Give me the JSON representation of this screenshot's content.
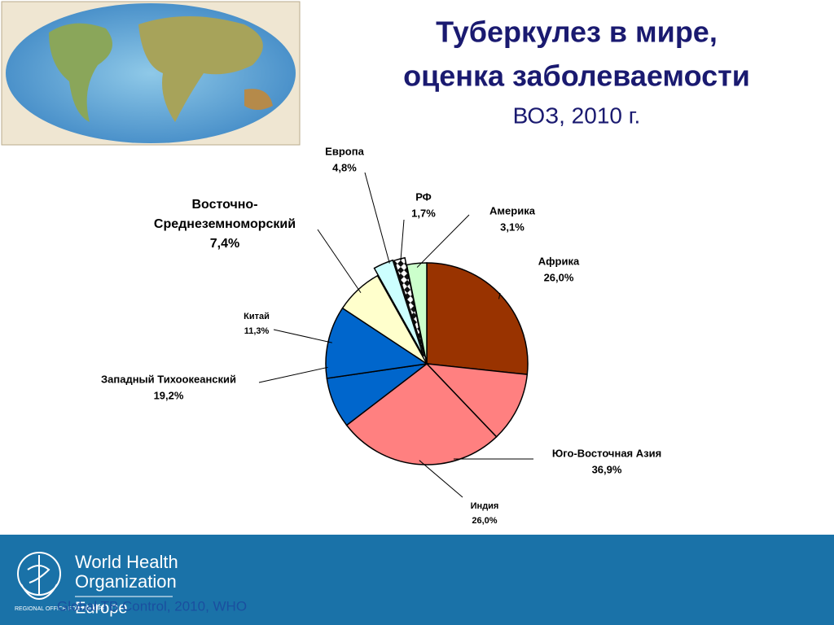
{
  "header": {
    "title": [
      "Туберкулез в мире,",
      "оценка заболеваемости"
    ],
    "subtitle": "ВОЗ, 2010 г."
  },
  "chart_data": {
    "type": "pie",
    "categories": [
      "Африка",
      null,
      "Индия",
      null,
      "Китай",
      "Восточно-Среднеземноморский",
      null,
      "РФ",
      "Америка"
    ],
    "values": [
      26.0,
      10.9,
      26.0,
      7.9,
      11.3,
      7.4,
      3.1,
      1.7,
      3.1
    ],
    "value_labels": [
      "26,0%",
      null,
      "26,0%",
      null,
      "11,3%",
      "7,4%",
      null,
      "1,7%",
      "3,1%"
    ],
    "colors": [
      "#993300",
      "#ff8080",
      "#ff8080",
      "#0066cc",
      "#0066cc",
      "#ffffcc",
      "#ccffff",
      "#ffffff",
      "#ccffcc"
    ],
    "groups": [
      {
        "name": "Юго-Восточная Азия",
        "value": 36.9,
        "value_label": "36,9%"
      },
      {
        "name": "Западный Тихоокеанский",
        "value": 19.2,
        "value_label": "19,2%"
      },
      {
        "name": "Европа",
        "value": 4.8,
        "value_label": "4,8%"
      }
    ]
  },
  "footer": {
    "logo": [
      "World Health",
      "Organization"
    ],
    "region": "Europe",
    "office": "REGIONAL OFFICE FOR EUROPE",
    "source": "Global TB Control, 2010, WHO"
  }
}
